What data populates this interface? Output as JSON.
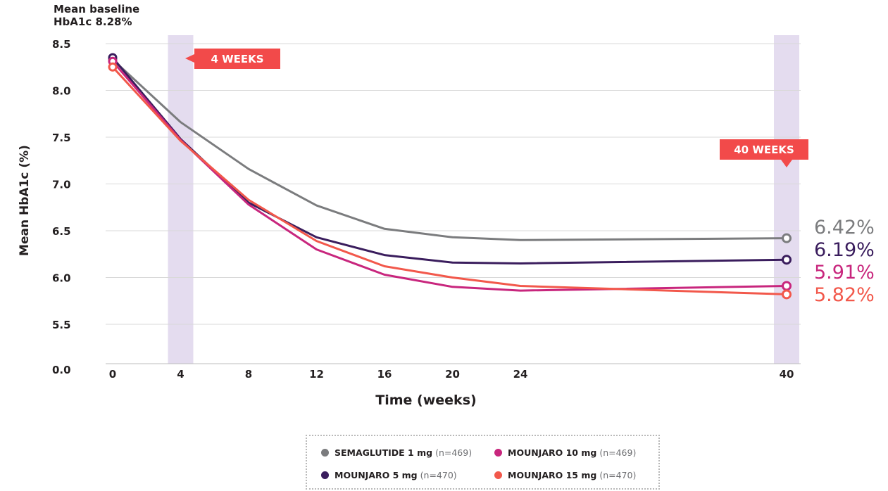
{
  "baseline_note": {
    "line1": "Mean baseline",
    "line2": "HbA1c 8.28%"
  },
  "chart_data": {
    "type": "line",
    "title": "",
    "ylabel": "Mean HbA1c (%)",
    "xlabel": "Time (weeks)",
    "x_ticks": [
      "0",
      "4",
      "8",
      "12",
      "16",
      "20",
      "24",
      "40"
    ],
    "y_ticks": [
      "0.0",
      "5.5",
      "6.0",
      "6.5",
      "7.0",
      "7.5",
      "8.0",
      "8.5"
    ],
    "ylim": [
      5.0,
      8.5
    ],
    "y_axis_break": true,
    "x_axis_compressed_after": 24,
    "x": [
      0,
      4,
      8,
      12,
      16,
      20,
      24,
      40
    ],
    "highlight_weeks": [
      4,
      40
    ],
    "callouts": [
      {
        "week": 4,
        "label": "4 WEEKS"
      },
      {
        "week": 40,
        "label": "40 WEEKS"
      }
    ],
    "series": [
      {
        "name": "SEMAGLUTIDE 1 mg",
        "n": "(n=469)",
        "color": "#7b7c7e",
        "values": [
          8.33,
          7.66,
          7.16,
          6.77,
          6.52,
          6.43,
          6.4,
          6.42
        ],
        "end_label": "6.42%"
      },
      {
        "name": "MOUNJARO 5 mg",
        "n": "(n=470)",
        "color": "#3a1d5d",
        "values": [
          8.35,
          7.48,
          6.8,
          6.43,
          6.24,
          6.16,
          6.15,
          6.19
        ],
        "end_label": "6.19%"
      },
      {
        "name": "MOUNJARO 10 mg",
        "n": "(n=469)",
        "color": "#c8267d",
        "values": [
          8.31,
          7.47,
          6.78,
          6.3,
          6.03,
          5.9,
          5.86,
          5.91
        ],
        "end_label": "5.91%"
      },
      {
        "name": "MOUNJARO 15 mg",
        "n": "(n=470)",
        "color": "#f2584b",
        "values": [
          8.25,
          7.46,
          6.83,
          6.39,
          6.12,
          6.0,
          5.91,
          5.82
        ],
        "end_label": "5.82%"
      }
    ],
    "grid": true,
    "legend_position": "bottom"
  },
  "colors": {
    "highlight_band": "#e4dcef",
    "callout": "#f24a4a",
    "grid": "#d9d9d9",
    "axis_text": "#231f20"
  }
}
